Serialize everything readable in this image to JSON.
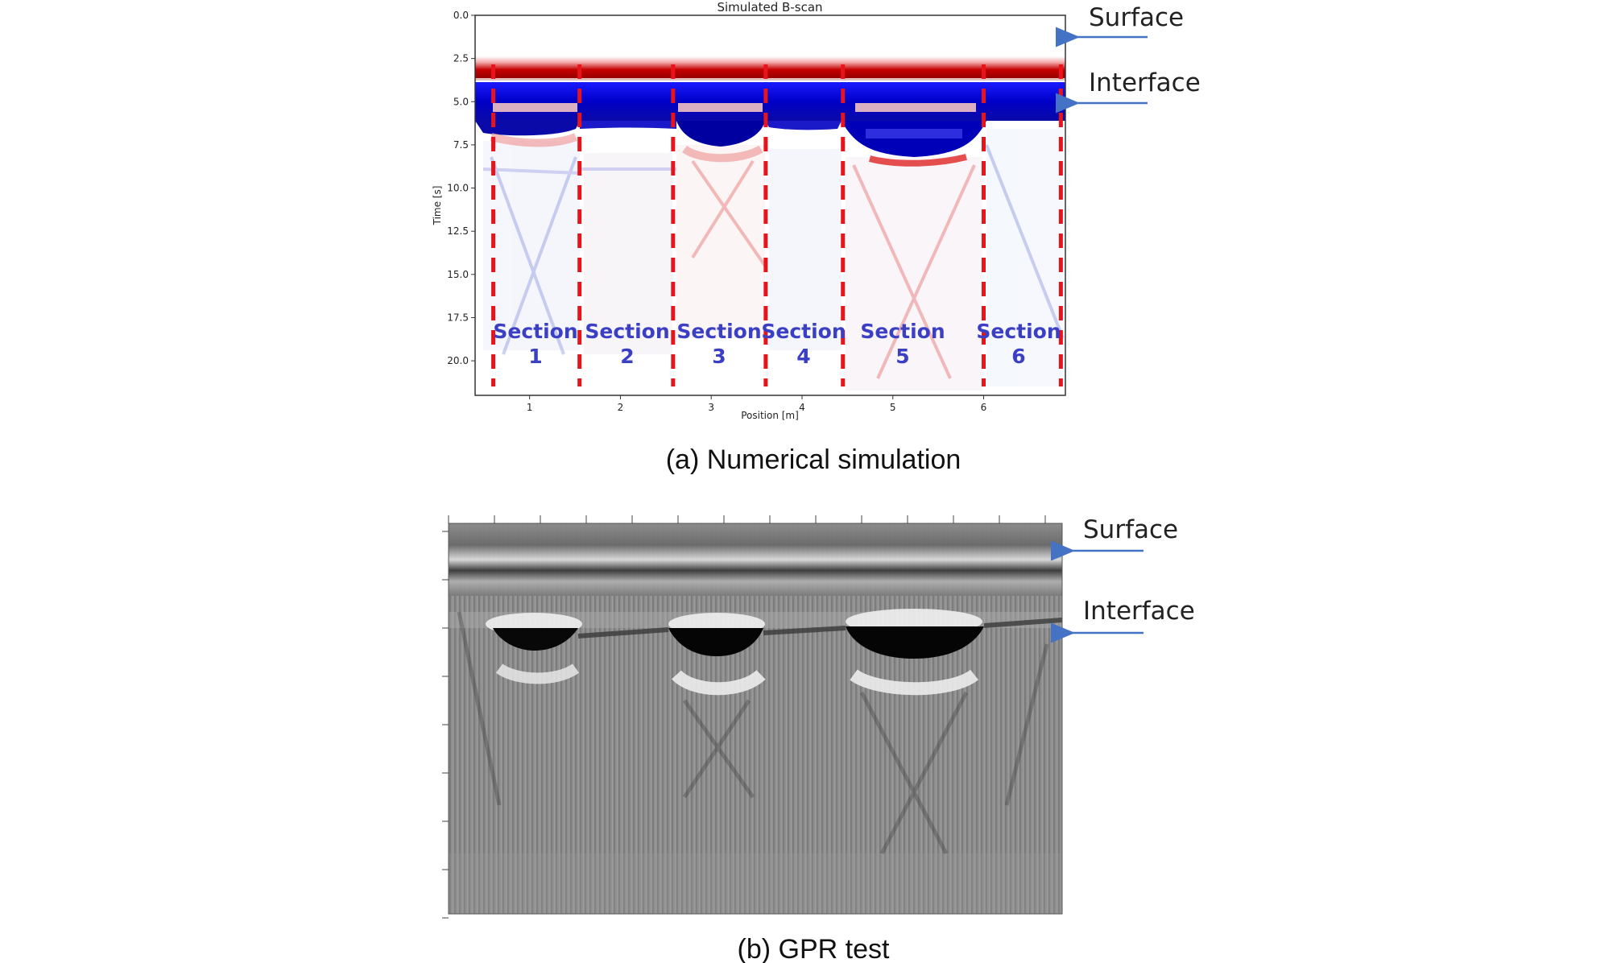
{
  "panel_a": {
    "caption": "(a) Numerical simulation",
    "chart_data": {
      "type": "heatmap",
      "title": "Simulated B-scan",
      "xlabel": "Position [m]",
      "ylabel": "Time [s]",
      "x_ticks": [
        "1",
        "2",
        "3",
        "4",
        "5",
        "6"
      ],
      "y_ticks": [
        "0.0",
        "2.5",
        "5.0",
        "7.5",
        "10.0",
        "12.5",
        "15.0",
        "17.5",
        "20.0"
      ],
      "xlim": [
        0.4,
        6.9
      ],
      "ylim": [
        22,
        0
      ],
      "colormap": "seismic (blue-white-red)"
    },
    "sections": [
      {
        "line1": "Section",
        "line2": "1"
      },
      {
        "line1": "Section",
        "line2": "2"
      },
      {
        "line1": "Section",
        "line2": "3"
      },
      {
        "line1": "Section",
        "line2": "4"
      },
      {
        "line1": "Section",
        "line2": "5"
      },
      {
        "line1": "Section",
        "line2": "6"
      }
    ],
    "annotations": {
      "surface": "Surface",
      "interface": "Interface"
    }
  },
  "panel_b": {
    "caption": "(b) GPR test",
    "annotations": {
      "surface": "Surface",
      "interface": "Interface"
    },
    "colormap": "grayscale"
  },
  "colors": {
    "section_divider": "#e8141c",
    "arrow": "#4472c4",
    "section_text": "#3b3fc4"
  }
}
